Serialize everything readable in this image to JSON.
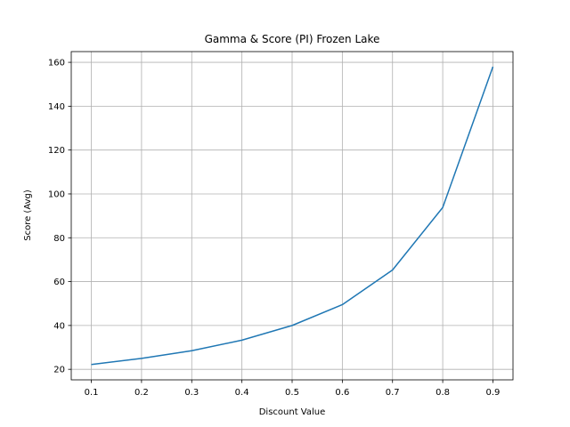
{
  "chart_data": {
    "type": "line",
    "title": "Gamma & Score (PI) Frozen Lake",
    "xlabel": "Discount Value",
    "ylabel": "Score (Avg)",
    "x": [
      0.1,
      0.2,
      0.3,
      0.4,
      0.5,
      0.6,
      0.7,
      0.8,
      0.9
    ],
    "series": [
      {
        "values": [
          22.2,
          25.0,
          28.5,
          33.3,
          40.0,
          49.5,
          65.3,
          93.8,
          158.0
        ]
      }
    ],
    "xticks": [
      "0.1",
      "0.2",
      "0.3",
      "0.4",
      "0.5",
      "0.6",
      "0.7",
      "0.8",
      "0.9"
    ],
    "yticks": [
      "20",
      "40",
      "60",
      "80",
      "100",
      "120",
      "140",
      "160"
    ],
    "xlim": [
      0.06,
      0.94
    ],
    "ylim": [
      15.2,
      164.9
    ],
    "grid": true,
    "line_color": "#1f77b4"
  }
}
